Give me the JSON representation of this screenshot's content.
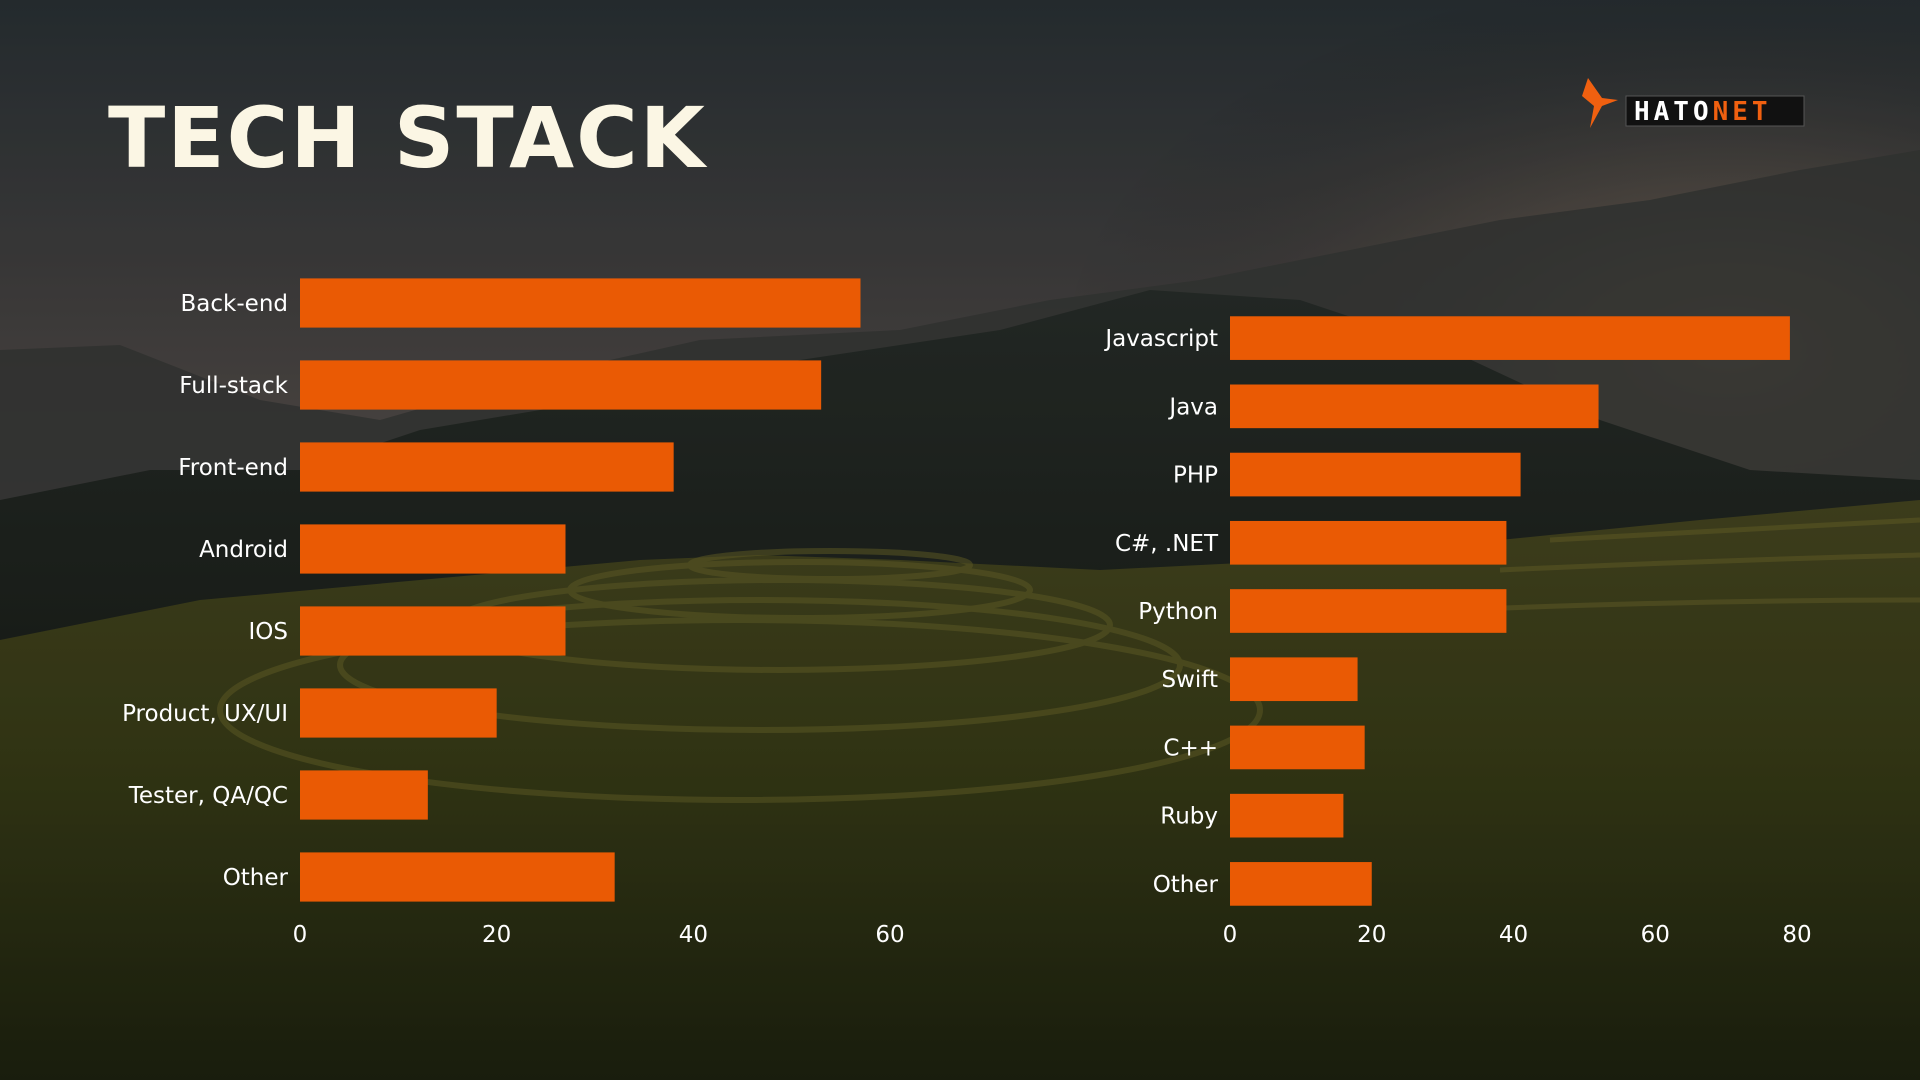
{
  "slide": {
    "title": "TECH STACK"
  },
  "logo": {
    "text_part1": "HATO",
    "text_part2": "NET",
    "icon": "bird-icon",
    "colors": {
      "dark": "#111111",
      "accent": "#f06010",
      "light": "#ffffff"
    }
  },
  "colors": {
    "bar": "#ea5a04",
    "label": "#ffffff",
    "title": "#fbf6e4"
  },
  "chart_data": [
    {
      "type": "bar",
      "orientation": "horizontal",
      "title": "",
      "xlabel": "",
      "ylabel": "",
      "categories": [
        "Back-end",
        "Full-stack",
        "Front-end",
        "Android",
        "IOS",
        "Product, UX/UI",
        "Tester, QA/QC",
        "Other"
      ],
      "values": [
        57,
        53,
        38,
        27,
        27,
        20,
        13,
        32
      ],
      "xlim": [
        0,
        60
      ],
      "ticks": [
        "0",
        "20",
        "40",
        "60"
      ],
      "grid": false,
      "legend": "none"
    },
    {
      "type": "bar",
      "orientation": "horizontal",
      "title": "",
      "xlabel": "",
      "ylabel": "",
      "categories": [
        "Javascript",
        "Java",
        "PHP",
        "C#, .NET",
        "Python",
        "Swift",
        "C++",
        "Ruby",
        "Other"
      ],
      "values": [
        79,
        52,
        41,
        39,
        39,
        18,
        19,
        16,
        20
      ],
      "xlim": [
        0,
        80
      ],
      "ticks": [
        "0",
        "20",
        "40",
        "60",
        "80"
      ],
      "grid": false,
      "legend": "none"
    }
  ]
}
